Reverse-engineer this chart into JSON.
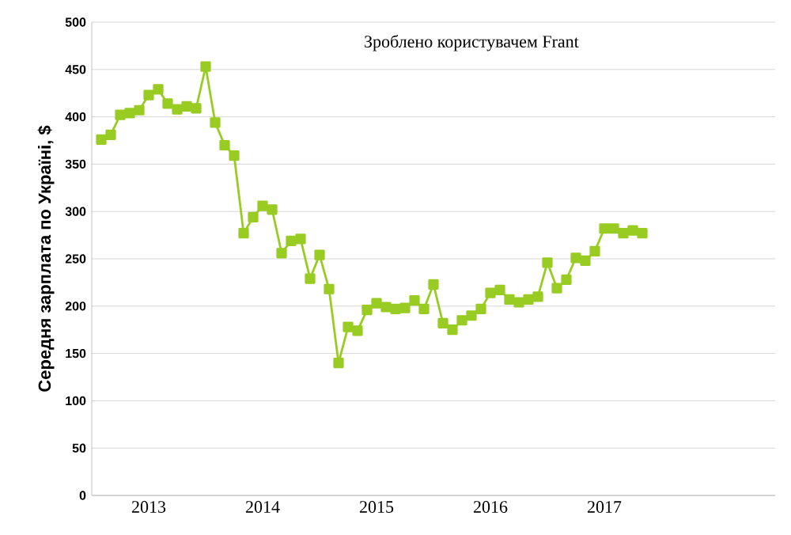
{
  "chart_data": {
    "type": "line",
    "ylabel": "Середня зарплата по Україні, $",
    "annotations": [
      "Зроблено користувачем Frant"
    ],
    "categories": [
      null,
      null,
      null,
      null,
      null,
      "2013",
      null,
      null,
      null,
      null,
      null,
      null,
      null,
      null,
      null,
      null,
      null,
      "2014",
      null,
      null,
      null,
      null,
      null,
      null,
      null,
      null,
      null,
      null,
      null,
      "2015",
      null,
      null,
      null,
      null,
      null,
      null,
      null,
      null,
      null,
      null,
      null,
      "2016",
      null,
      null,
      null,
      null,
      null,
      null,
      null,
      null,
      null,
      null,
      null,
      "2017",
      null,
      null,
      null,
      null,
      null,
      null,
      null,
      null,
      null,
      null,
      null,
      null,
      null,
      null,
      null,
      null,
      null,
      null
    ],
    "series": [
      {
        "color": "#99cc22",
        "values": [
          376,
          381,
          402,
          404,
          407,
          423,
          429,
          414,
          408,
          411,
          409,
          453,
          394,
          370,
          359,
          277,
          294,
          306,
          302,
          256,
          269,
          271,
          229,
          254,
          218,
          140,
          178,
          174,
          196,
          203,
          199,
          197,
          198,
          206,
          197,
          223,
          182,
          175,
          185,
          190,
          197,
          214,
          217,
          207,
          204,
          207,
          210,
          246,
          219,
          228,
          251,
          248,
          258,
          282,
          282,
          277,
          280,
          277,
          null,
          null,
          null,
          null,
          null,
          null,
          null,
          null,
          null,
          null,
          null,
          null,
          null,
          null
        ]
      }
    ],
    "ylim": [
      0,
      500
    ],
    "yticks": [
      0,
      50,
      100,
      150,
      200,
      250,
      300,
      350,
      400,
      450,
      500
    ],
    "grid": "y",
    "marker": "square",
    "line_style": "solid"
  }
}
